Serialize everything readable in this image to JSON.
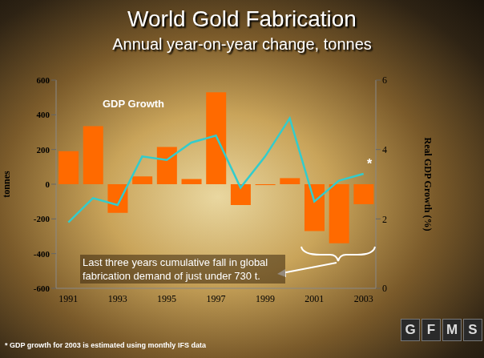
{
  "chart_data": {
    "type": "bar",
    "title": "World Gold Fabrication",
    "subtitle": "Annual year-on-year change, tonnes",
    "ylabel": "tonnes",
    "y2label": "Real GDP Growth (%)",
    "categories": [
      "1991",
      null,
      "1993",
      null,
      "1995",
      null,
      "1997",
      null,
      "1999",
      null,
      "2001",
      null,
      "2003"
    ],
    "series": [
      {
        "type": "bar",
        "color": "#ff6a00",
        "values": [
          190,
          335,
          -165,
          45,
          215,
          30,
          530,
          -120,
          -5,
          35,
          -270,
          -340,
          -115
        ]
      },
      {
        "name": "GDP Growth",
        "type": "line",
        "axis": "y2",
        "color": "#33cccc",
        "marker": "none",
        "values": [
          1.9,
          2.6,
          2.4,
          3.8,
          3.7,
          4.2,
          4.4,
          2.9,
          3.8,
          4.9,
          2.5,
          3.1,
          3.3
        ]
      }
    ],
    "ylim": [
      -600,
      600
    ],
    "yticks": [
      -600,
      -400,
      -200,
      0,
      200,
      400,
      600
    ],
    "y2lim": [
      0,
      6
    ],
    "y2ticks": [
      0,
      2,
      4,
      6
    ],
    "grid": false,
    "annotations": [
      {
        "text": "Last three years cumulative fall in global fabrication demand of just under 730 t."
      },
      {
        "text": "*"
      }
    ],
    "footnote": "* GDP growth for 2003 is estimated using monthly IFS data",
    "logo": "GFMS"
  }
}
